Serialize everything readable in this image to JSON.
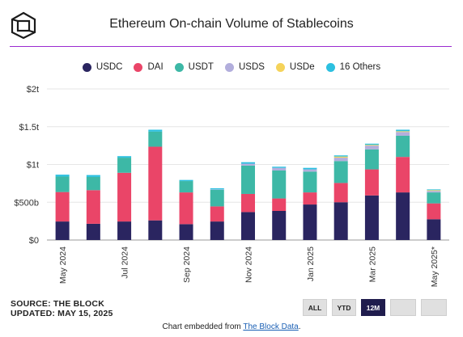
{
  "header": {
    "title": "Ethereum On-chain Volume of Stablecoins"
  },
  "colors": {
    "USDC": "#2a2560",
    "DAI": "#ea4568",
    "USDT": "#3db8a6",
    "USDS": "#b2aedc",
    "USDe": "#f5d35a",
    "16 Others": "#2cc0e0"
  },
  "chart_data": {
    "type": "bar",
    "stacked": true,
    "categories": [
      "May 2024",
      "Jun 2024",
      "Jul 2024",
      "Aug 2024",
      "Sep 2024",
      "Oct 2024",
      "Nov 2024",
      "Dec 2024",
      "Jan 2025",
      "Feb 2025",
      "Mar 2025",
      "Apr 2025",
      "May 2025*"
    ],
    "x_tick_labels": [
      "May 2024",
      "",
      "Jul 2024",
      "",
      "Sep 2024",
      "",
      "Nov 2024",
      "",
      "Jan 2025",
      "",
      "Mar 2025",
      "",
      "May 2025*"
    ],
    "y_tick_labels": [
      "$0",
      "$500b",
      "$1t",
      "$1.5t",
      "$2t"
    ],
    "ylim": [
      0,
      2000
    ],
    "y_unit": "billions USD",
    "grid": true,
    "legend_position": "top",
    "series": [
      {
        "name": "USDC",
        "values": [
          245,
          215,
          245,
          260,
          210,
          245,
          370,
          385,
          470,
          500,
          590,
          630,
          275
        ]
      },
      {
        "name": "DAI",
        "values": [
          390,
          445,
          645,
          975,
          420,
          200,
          240,
          165,
          160,
          255,
          345,
          470,
          210
        ]
      },
      {
        "name": "USDT",
        "values": [
          205,
          175,
          200,
          200,
          150,
          220,
          375,
          370,
          275,
          290,
          265,
          280,
          145
        ]
      },
      {
        "name": "USDS",
        "values": [
          0,
          0,
          0,
          0,
          0,
          5,
          25,
          35,
          30,
          45,
          50,
          50,
          20
        ]
      },
      {
        "name": "USDe",
        "values": [
          0,
          0,
          0,
          0,
          0,
          0,
          0,
          0,
          0,
          15,
          10,
          10,
          10
        ]
      },
      {
        "name": "16 Others",
        "values": [
          25,
          25,
          20,
          25,
          15,
          15,
          20,
          15,
          20,
          15,
          15,
          20,
          10
        ]
      }
    ]
  },
  "source": {
    "line1": "SOURCE: THE BLOCK",
    "line2": "UPDATED: MAY 15, 2025"
  },
  "range_buttons": [
    "ALL",
    "YTD",
    "12M"
  ],
  "active_button": "12M",
  "embed": {
    "prefix": "Chart embedded from ",
    "link": "The Block Data",
    "suffix": "."
  }
}
